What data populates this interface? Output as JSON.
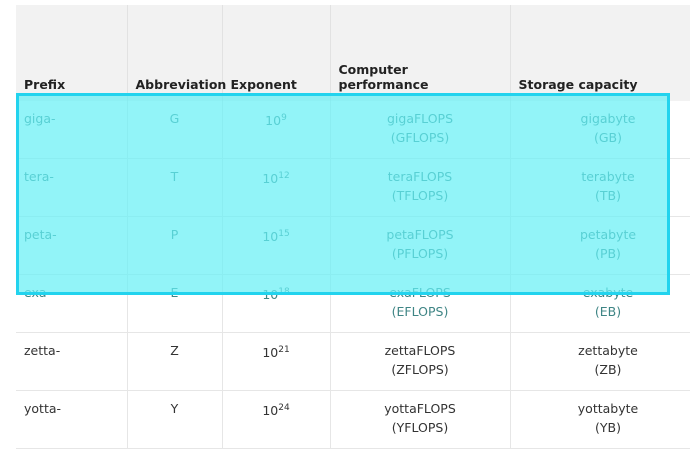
{
  "headers": [
    "Prefix",
    "Abbreviation",
    "Exponent",
    "Computer performance",
    "Storage capacity"
  ],
  "rows": [
    {
      "prefix": "giga-",
      "abbr": "G",
      "base": "10",
      "exp": "9",
      "perf": "gigaFLOPS",
      "perf_abbr": "(GFLOPS)",
      "storage": "gigabyte",
      "storage_abbr": "(GB)"
    },
    {
      "prefix": "tera-",
      "abbr": "T",
      "base": "10",
      "exp": "12",
      "perf": "teraFLOPS",
      "perf_abbr": "(TFLOPS)",
      "storage": "terabyte",
      "storage_abbr": "(TB)"
    },
    {
      "prefix": "peta-",
      "abbr": "P",
      "base": "10",
      "exp": "15",
      "perf": "petaFLOPS",
      "perf_abbr": "(PFLOPS)",
      "storage": "petabyte",
      "storage_abbr": "(PB)"
    },
    {
      "prefix": "exa-",
      "abbr": "E",
      "base": "10",
      "exp": "18",
      "perf": "exaFLOPS",
      "perf_abbr": "(EFLOPS)",
      "storage": "exabyte",
      "storage_abbr": "(EB)"
    },
    {
      "prefix": "zetta-",
      "abbr": "Z",
      "base": "10",
      "exp": "21",
      "perf": "zettaFLOPS",
      "perf_abbr": "(ZFLOPS)",
      "storage": "zettabyte",
      "storage_abbr": "(ZB)"
    },
    {
      "prefix": "yotta-",
      "abbr": "Y",
      "base": "10",
      "exp": "24",
      "perf": "yottaFLOPS",
      "perf_abbr": "(YFLOPS)",
      "storage": "yottabyte",
      "storage_abbr": "(YB)"
    }
  ],
  "highlight": {
    "color": "#93f5f7",
    "border": "#22d3ee",
    "rows": [
      "giga-",
      "tera-",
      "peta-",
      "exa-"
    ]
  }
}
